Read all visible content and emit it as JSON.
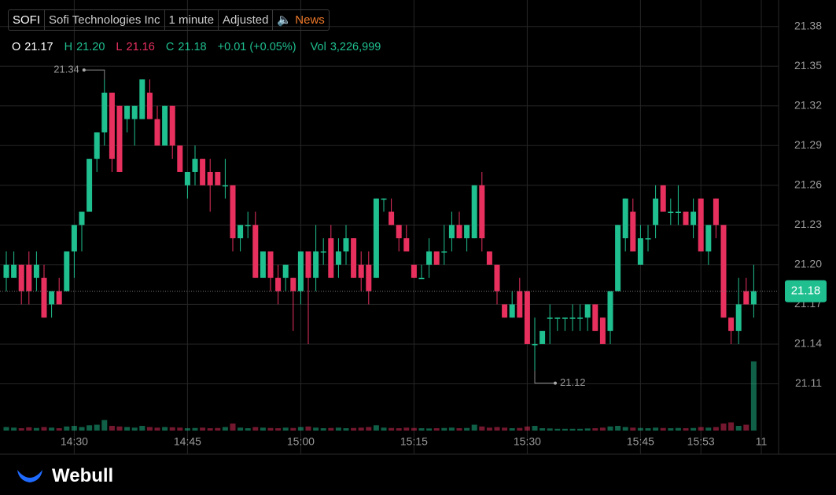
{
  "header": {
    "symbol": "SOFI",
    "name": "Sofi Technologies Inc",
    "interval": "1 minute",
    "adjustment": "Adjusted",
    "news": "News"
  },
  "quote": {
    "o_label": "O",
    "o": "21.17",
    "h_label": "H",
    "h": "21.20",
    "l_label": "L",
    "l": "21.16",
    "c_label": "C",
    "c": "21.18",
    "change": "+0.01 (+0.05%)",
    "vol_label": "Vol",
    "vol": "3,226,999"
  },
  "chart_data": {
    "type": "candlestick",
    "up_color": "#1fbf8f",
    "down_color": "#e8305e",
    "categories": [
      null,
      null,
      null,
      null,
      null,
      null,
      null,
      null,
      null,
      "14:30",
      null,
      null,
      null,
      null,
      null,
      null,
      null,
      null,
      null,
      null,
      null,
      null,
      null,
      null,
      "14:45",
      null,
      null,
      null,
      null,
      null,
      null,
      null,
      null,
      null,
      null,
      null,
      null,
      null,
      null,
      "15:00",
      null,
      null,
      null,
      null,
      null,
      null,
      null,
      null,
      null,
      null,
      null,
      null,
      null,
      null,
      "15:15",
      null,
      null,
      null,
      null,
      null,
      null,
      null,
      null,
      null,
      null,
      null,
      null,
      null,
      null,
      "15:30",
      null,
      null,
      null,
      null,
      null,
      null,
      null,
      null,
      null,
      null,
      null,
      null,
      null,
      null,
      "15:45",
      null,
      null,
      null,
      null,
      null,
      null,
      null,
      "15:53",
      null,
      null,
      null,
      null,
      null,
      null,
      null,
      "11"
    ],
    "open": [
      21.19,
      21.19,
      21.2,
      21.2,
      21.19,
      21.19,
      21.17,
      21.18,
      21.18,
      21.21,
      21.23,
      21.24,
      21.28,
      21.3,
      21.33,
      21.32,
      21.31,
      21.31,
      21.31,
      21.33,
      21.31,
      21.29,
      21.32,
      21.29,
      21.26,
      21.27,
      21.28,
      21.27,
      21.27,
      21.26,
      21.26,
      21.22,
      21.23,
      21.23,
      21.19,
      21.21,
      21.19,
      21.19,
      21.19,
      21.18,
      21.21,
      21.19,
      21.21,
      21.22,
      21.2,
      21.21,
      21.22,
      21.2,
      21.2,
      21.19,
      21.25,
      21.24,
      21.23,
      21.22,
      21.2,
      21.19,
      21.2,
      21.21,
      21.21,
      21.22,
      21.23,
      21.22,
      21.22,
      21.26,
      21.21,
      21.2,
      21.17,
      21.16,
      21.18,
      21.18,
      21.14,
      21.14,
      21.16,
      21.16,
      21.16,
      21.16,
      21.16,
      21.16,
      21.17,
      21.16,
      21.15,
      21.18,
      21.22,
      21.24,
      21.2,
      21.22,
      21.23,
      21.26,
      21.24,
      21.24,
      21.24,
      21.23,
      21.25,
      21.21,
      21.25,
      21.23,
      21.16,
      21.15,
      21.18,
      21.17,
      null
    ],
    "high": [
      21.21,
      21.21,
      21.2,
      21.21,
      21.21,
      21.2,
      21.18,
      21.19,
      21.21,
      21.23,
      21.24,
      21.28,
      21.3,
      21.34,
      21.33,
      21.32,
      21.32,
      21.32,
      21.34,
      21.34,
      21.32,
      21.32,
      21.32,
      21.29,
      21.27,
      21.29,
      21.28,
      21.28,
      21.27,
      21.28,
      21.26,
      21.23,
      21.24,
      21.24,
      21.21,
      21.21,
      21.2,
      21.2,
      21.19,
      21.21,
      21.21,
      21.23,
      21.22,
      21.23,
      21.22,
      21.23,
      21.22,
      21.21,
      21.21,
      21.25,
      21.25,
      21.25,
      21.23,
      21.23,
      21.2,
      21.2,
      21.22,
      21.21,
      21.23,
      21.24,
      21.24,
      21.23,
      21.26,
      21.27,
      21.21,
      21.2,
      21.17,
      21.18,
      21.19,
      21.18,
      21.16,
      21.15,
      21.17,
      21.16,
      21.16,
      21.17,
      21.17,
      21.17,
      21.17,
      21.16,
      21.18,
      21.23,
      21.25,
      21.25,
      21.23,
      21.23,
      21.26,
      21.26,
      21.25,
      21.26,
      21.24,
      21.25,
      21.25,
      21.23,
      21.25,
      21.23,
      21.16,
      21.19,
      21.19,
      21.2,
      null
    ],
    "low": [
      21.18,
      21.19,
      21.17,
      21.17,
      21.18,
      21.16,
      21.16,
      21.17,
      21.18,
      21.19,
      21.21,
      21.24,
      21.27,
      21.29,
      21.27,
      21.27,
      21.3,
      21.29,
      21.31,
      21.31,
      21.29,
      21.29,
      21.28,
      21.27,
      21.25,
      21.26,
      21.26,
      21.24,
      21.26,
      21.25,
      21.21,
      21.21,
      21.22,
      21.19,
      21.19,
      21.18,
      21.17,
      21.18,
      21.15,
      21.17,
      21.14,
      21.18,
      21.2,
      21.19,
      21.19,
      21.2,
      21.19,
      21.18,
      21.17,
      21.19,
      21.24,
      21.23,
      21.21,
      21.21,
      21.19,
      21.19,
      21.19,
      21.2,
      21.2,
      21.21,
      21.22,
      21.21,
      21.22,
      21.21,
      21.2,
      21.17,
      21.16,
      21.16,
      21.16,
      21.14,
      21.12,
      21.14,
      21.14,
      21.15,
      21.15,
      21.15,
      21.15,
      21.15,
      21.15,
      21.14,
      21.14,
      21.18,
      21.21,
      21.21,
      21.2,
      21.21,
      21.22,
      21.24,
      21.23,
      21.23,
      21.23,
      21.22,
      21.21,
      21.2,
      21.22,
      21.16,
      21.14,
      21.14,
      21.17,
      21.16,
      null
    ],
    "close": [
      21.2,
      21.2,
      21.18,
      21.18,
      21.2,
      21.16,
      21.18,
      21.17,
      21.21,
      21.23,
      21.24,
      21.28,
      21.3,
      21.33,
      21.28,
      21.27,
      21.32,
      21.32,
      21.34,
      21.31,
      21.29,
      21.32,
      21.29,
      21.27,
      21.27,
      21.28,
      21.26,
      21.26,
      21.26,
      21.26,
      21.22,
      21.23,
      21.23,
      21.19,
      21.21,
      21.19,
      21.18,
      21.2,
      21.18,
      21.21,
      21.19,
      21.21,
      21.21,
      21.19,
      21.21,
      21.22,
      21.19,
      21.19,
      21.18,
      21.25,
      21.25,
      21.23,
      21.22,
      21.21,
      21.19,
      21.19,
      21.21,
      21.2,
      21.21,
      21.23,
      21.22,
      21.23,
      21.26,
      21.22,
      21.2,
      21.18,
      21.16,
      21.17,
      21.16,
      21.14,
      21.14,
      21.15,
      21.16,
      21.16,
      21.16,
      21.16,
      21.16,
      21.17,
      21.15,
      21.14,
      21.18,
      21.23,
      21.25,
      21.21,
      21.22,
      21.22,
      21.25,
      21.24,
      21.24,
      21.24,
      21.23,
      21.24,
      21.21,
      21.23,
      21.23,
      21.16,
      21.15,
      21.17,
      21.17,
      21.18,
      null
    ],
    "volume": [
      30000,
      25000,
      20000,
      28000,
      22000,
      30000,
      25000,
      20000,
      35000,
      40000,
      30000,
      45000,
      50000,
      90000,
      40000,
      35000,
      30000,
      25000,
      40000,
      30000,
      25000,
      30000,
      28000,
      25000,
      20000,
      22000,
      25000,
      20000,
      22000,
      30000,
      60000,
      25000,
      20000,
      30000,
      25000,
      22000,
      20000,
      25000,
      22000,
      30000,
      35000,
      25000,
      20000,
      22000,
      25000,
      20000,
      22000,
      25000,
      30000,
      45000,
      25000,
      22000,
      20000,
      25000,
      22000,
      20000,
      18000,
      20000,
      22000,
      25000,
      20000,
      22000,
      50000,
      35000,
      25000,
      30000,
      25000,
      20000,
      22000,
      35000,
      40000,
      20000,
      18000,
      15000,
      15000,
      15000,
      15000,
      18000,
      20000,
      25000,
      35000,
      40000,
      30000,
      25000,
      22000,
      20000,
      25000,
      22000,
      20000,
      22000,
      20000,
      22000,
      30000,
      25000,
      30000,
      60000,
      70000,
      40000,
      50000,
      590000,
      null
    ],
    "ylim": [
      21.08,
      21.4
    ],
    "yticks": [
      21.38,
      21.35,
      21.32,
      21.29,
      21.26,
      21.23,
      {
        "value": 21.2,
        "label": "21.20"
      },
      21.17,
      21.14,
      21.11
    ],
    "grid": true
  },
  "footer": {
    "brand": "Webull"
  }
}
